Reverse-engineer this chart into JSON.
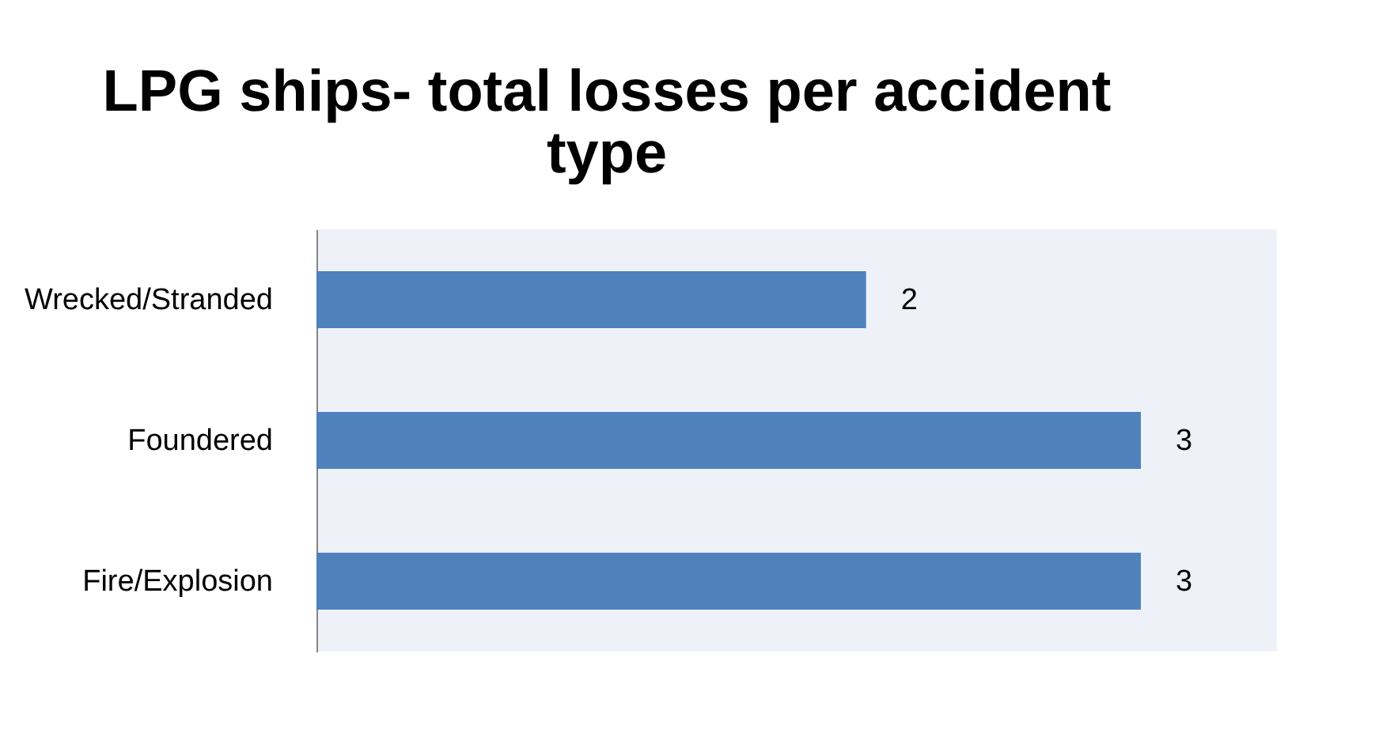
{
  "chart_data": {
    "type": "bar",
    "orientation": "horizontal",
    "title": [
      "LPG ships- total losses per accident",
      "type"
    ],
    "categories": [
      "Wrecked/Stranded",
      "Foundered",
      "Fire/Explosion"
    ],
    "values": [
      2,
      3,
      3
    ],
    "color": "#4f81bd",
    "data_labels": true,
    "grid": false
  }
}
